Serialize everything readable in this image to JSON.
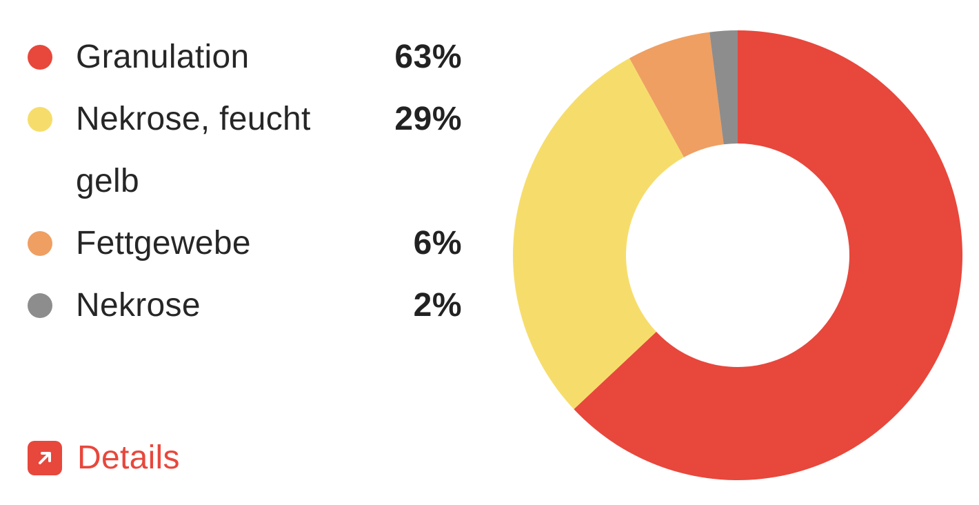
{
  "legend": {
    "items": [
      {
        "label": "Granulation",
        "percent": "63%",
        "color": "#e8473c"
      },
      {
        "label": "Nekrose, feucht gelb",
        "percent": "29%",
        "color": "#f6dd6b"
      },
      {
        "label": "Fettgewebe",
        "percent": "6%",
        "color": "#ef9f62"
      },
      {
        "label": "Nekrose",
        "percent": "2%",
        "color": "#8d8d8d"
      }
    ]
  },
  "details": {
    "label": "Details",
    "icon": "external-link-icon",
    "color": "#e8473c"
  },
  "chart_data": {
    "type": "pie",
    "donut": true,
    "categories": [
      "Granulation",
      "Nekrose, feucht gelb",
      "Fettgewebe",
      "Nekrose"
    ],
    "values": [
      63,
      29,
      6,
      2
    ],
    "colors": [
      "#e8473c",
      "#f6dd6b",
      "#ef9f62",
      "#8d8d8d"
    ],
    "start": "top",
    "direction": "clockwise"
  }
}
